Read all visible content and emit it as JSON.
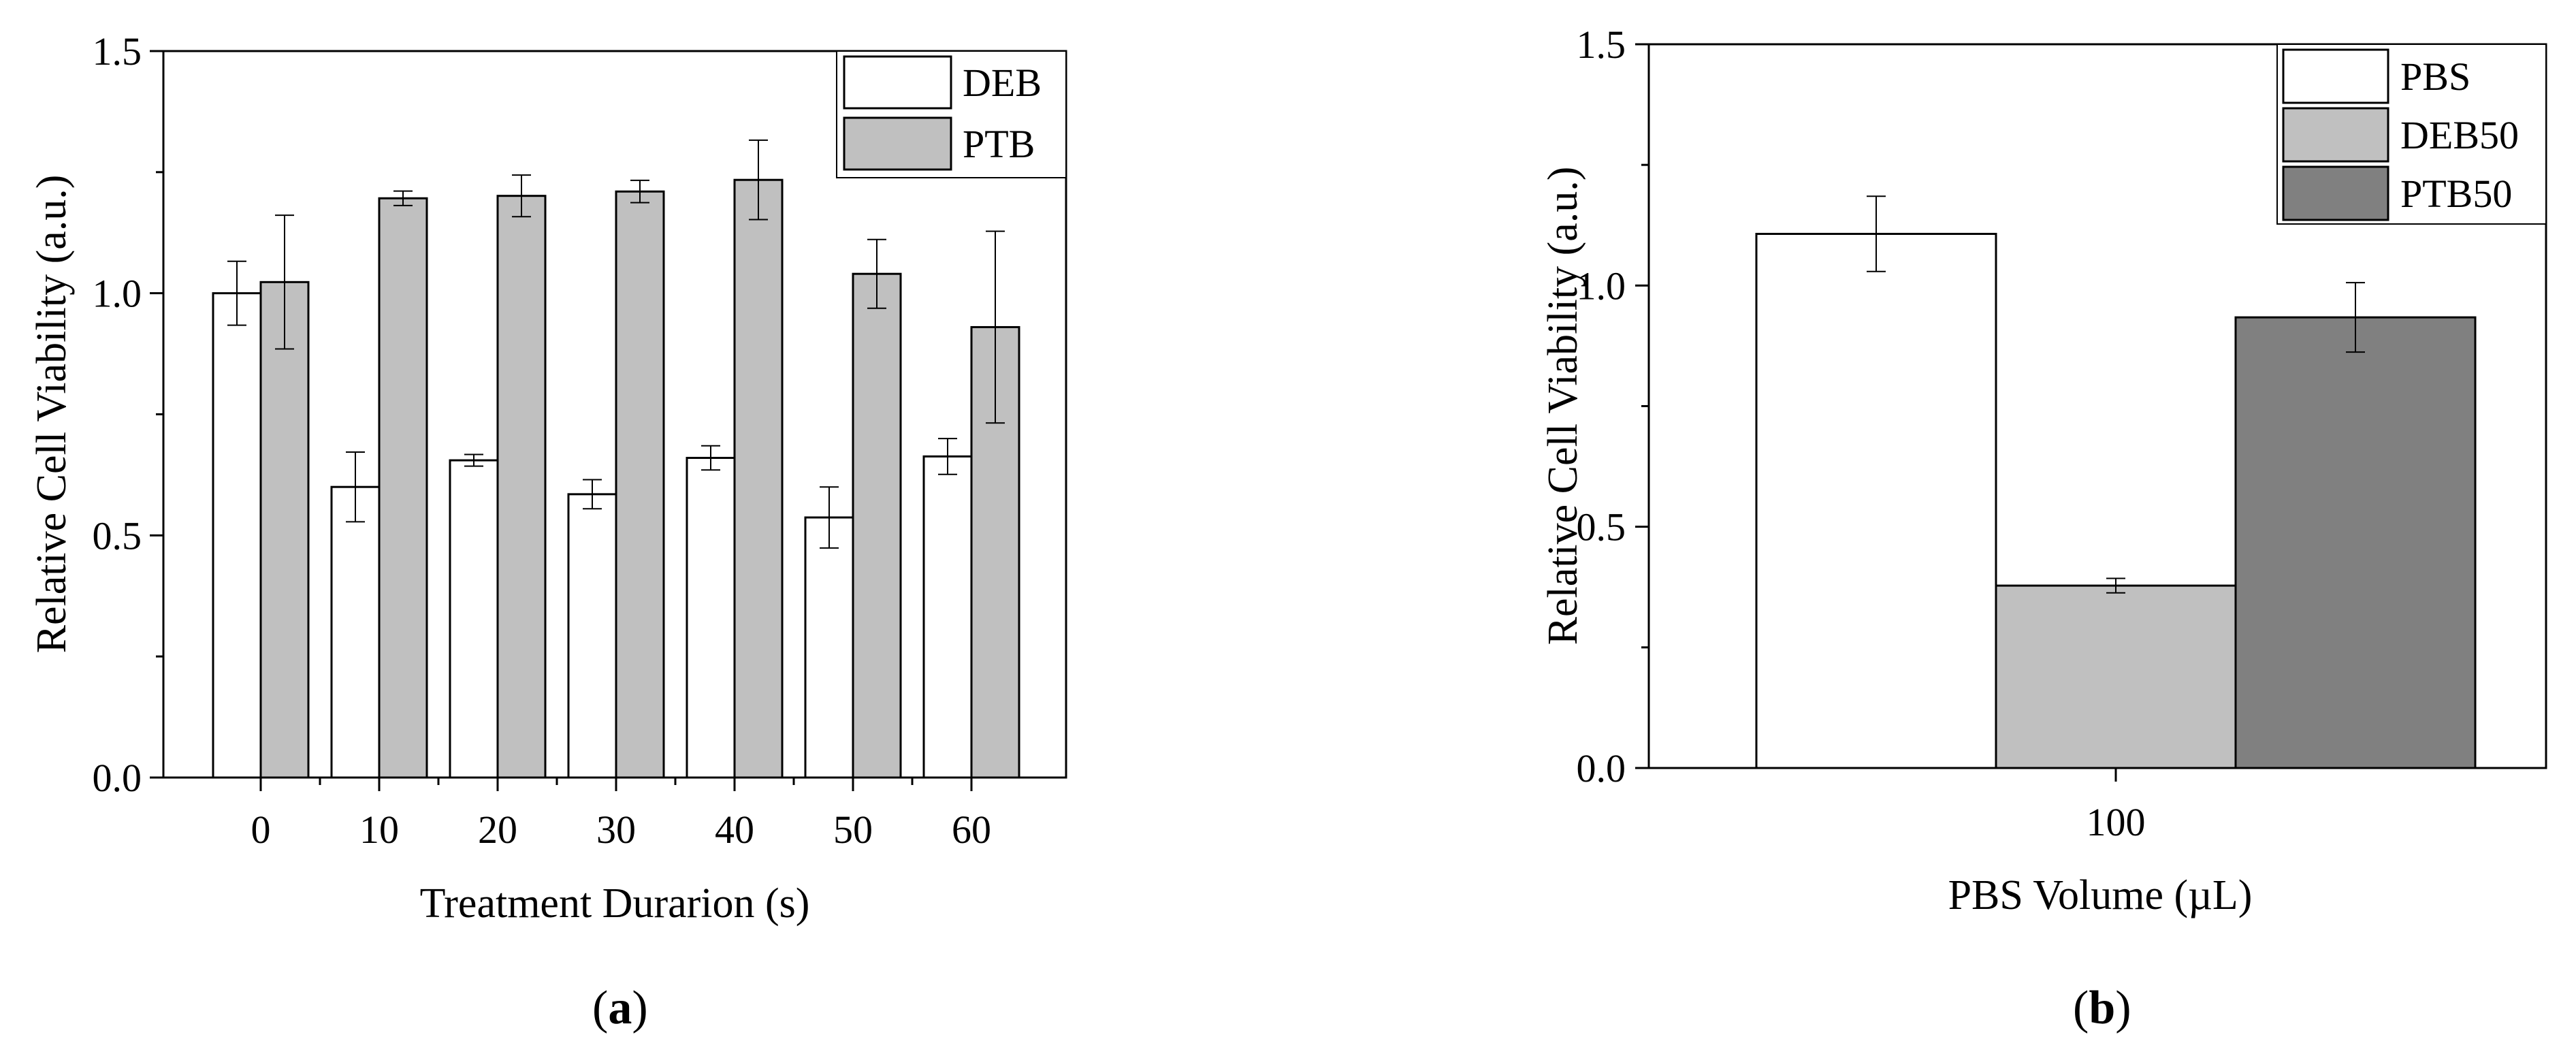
{
  "chart_data": [
    {
      "type": "bar",
      "panel_label": "a",
      "xlabel": "Treatment Durarion (s)",
      "ylabel": "Relative Cell Viability (a.u.)",
      "ylim": [
        0,
        1.5
      ],
      "yticks": [
        "0.0",
        "0.5",
        "1.0",
        "1.5"
      ],
      "categories": [
        "0",
        "10",
        "20",
        "30",
        "40",
        "50",
        "60"
      ],
      "series": [
        {
          "name": "DEB",
          "color": "#ffffff",
          "values": [
            1.0,
            0.6,
            0.655,
            0.585,
            0.66,
            0.537,
            0.663
          ],
          "errors": [
            0.066,
            0.072,
            0.012,
            0.03,
            0.025,
            0.063,
            0.037
          ]
        },
        {
          "name": "PTB",
          "color": "#c0c0c0",
          "values": [
            1.023,
            1.196,
            1.201,
            1.21,
            1.234,
            1.04,
            0.93
          ],
          "errors": [
            0.138,
            0.015,
            0.043,
            0.023,
            0.082,
            0.071,
            0.198
          ]
        }
      ],
      "legend_position": "top-right",
      "grid": false
    },
    {
      "type": "bar",
      "panel_label": "b",
      "xlabel": "PBS Volume (µL)",
      "ylabel": "Relative Cell Viability (a.u.)",
      "ylim": [
        0,
        1.5
      ],
      "yticks": [
        "0.0",
        "0.5",
        "1.0",
        "1.5"
      ],
      "categories": [
        "100"
      ],
      "series": [
        {
          "name": "PBS",
          "color": "#ffffff",
          "values": [
            1.107
          ],
          "errors": [
            0.078
          ]
        },
        {
          "name": "DEB50",
          "color": "#c0c0c0",
          "values": [
            0.378
          ],
          "errors": [
            0.015
          ]
        },
        {
          "name": "PTB50",
          "color": "#808080",
          "values": [
            0.934
          ],
          "errors": [
            0.072
          ]
        }
      ],
      "legend_position": "top-right",
      "grid": false
    }
  ]
}
